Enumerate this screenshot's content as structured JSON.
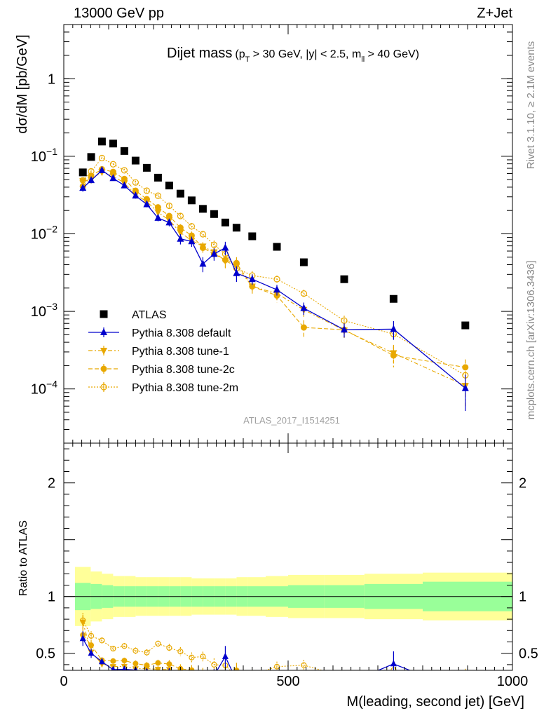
{
  "header": {
    "left": "13000 GeV pp",
    "right": "Z+Jet"
  },
  "side_labels": {
    "rivet": "Rivet 3.1.10, ≥ 2.1M events",
    "site": "mcplots.cern.ch [arXiv:1306.3436]"
  },
  "analysis_id": "ATLAS_2017_I1514251",
  "chart_data": {
    "type": "scatter",
    "title": {
      "main": "Dijet mass",
      "cuts_prefix": "(p",
      "cuts_sub1": "T",
      "cuts_mid": " > 30 GeV, |y| < 2.5, m",
      "cuts_sub2": "ll",
      "cuts_suffix": " > 40 GeV)"
    },
    "xlabel": "M(leading, second jet) [GeV]",
    "ylabel": "dσ/dM [pb/GeV]",
    "ratio_ylabel": "Ratio to ATLAS",
    "xlim": [
      0,
      1000
    ],
    "ylim": [
      2e-05,
      5
    ],
    "yscale": "log",
    "ratio_ylim": [
      0.35,
      2.35
    ],
    "x_ticks": [
      {
        "value": 0,
        "label": "0"
      },
      {
        "value": 500,
        "label": "500"
      },
      {
        "value": 1000,
        "label": "1000"
      }
    ],
    "y_ticks": [
      {
        "value": 1,
        "label": "1"
      },
      {
        "value": 0.1,
        "label": "10",
        "exp": "−1"
      },
      {
        "value": 0.01,
        "label": "10",
        "exp": "−2"
      },
      {
        "value": 0.001,
        "label": "10",
        "exp": "−3"
      },
      {
        "value": 0.0001,
        "label": "10",
        "exp": "−4"
      }
    ],
    "ratio_ticks": [
      {
        "value": 0.5,
        "label": "0.5"
      },
      {
        "value": 1,
        "label": "1"
      },
      {
        "value": 2,
        "label": "2"
      }
    ],
    "legend_position": "lower-left",
    "x": [
      42.5,
      61,
      85,
      110,
      135,
      160,
      185,
      210,
      235,
      260,
      285,
      310,
      335,
      360,
      385,
      420,
      475,
      535,
      625,
      735,
      895
    ],
    "bin_edges": [
      25,
      60,
      85,
      110,
      135,
      160,
      185,
      210,
      235,
      260,
      285,
      310,
      335,
      360,
      385,
      410,
      450,
      500,
      580,
      670,
      800,
      1000
    ],
    "band_inner": [
      0.12,
      0.11,
      0.1,
      0.09,
      0.09,
      0.09,
      0.09,
      0.09,
      0.09,
      0.09,
      0.09,
      0.09,
      0.09,
      0.09,
      0.09,
      0.09,
      0.09,
      0.1,
      0.1,
      0.11,
      0.13
    ],
    "band_outer": [
      0.26,
      0.22,
      0.2,
      0.18,
      0.18,
      0.17,
      0.17,
      0.17,
      0.17,
      0.17,
      0.16,
      0.16,
      0.16,
      0.16,
      0.17,
      0.17,
      0.18,
      0.19,
      0.19,
      0.2,
      0.21
    ],
    "series": [
      {
        "name": "ATLAS",
        "color": "#000000",
        "marker": "square",
        "values": [
          0.062,
          0.098,
          0.155,
          0.146,
          0.117,
          0.088,
          0.071,
          0.053,
          0.042,
          0.033,
          0.027,
          0.021,
          0.018,
          0.014,
          0.012,
          0.0093,
          0.0068,
          0.0043,
          0.0026,
          0.00145,
          0.00066
        ]
      },
      {
        "name": "Pythia 8.308 default",
        "color": "#0000cc",
        "marker": "triangle-up",
        "line": "solid",
        "values": [
          0.039,
          0.049,
          0.066,
          0.052,
          0.042,
          0.031,
          0.024,
          0.016,
          0.014,
          0.0086,
          0.008,
          0.0041,
          0.0055,
          0.0066,
          0.0031,
          0.0026,
          0.0019,
          0.0011,
          0.00058,
          0.00059,
          0.000102
        ],
        "errors": [
          0.004,
          0.004,
          0.004,
          0.003,
          0.003,
          0.0025,
          0.002,
          0.0015,
          0.0015,
          0.0013,
          0.0012,
          0.0009,
          0.001,
          0.0013,
          0.0007,
          0.0004,
          0.0003,
          0.0002,
          0.00012,
          0.00016,
          5e-05
        ]
      },
      {
        "name": "Pythia 8.308 tune-1",
        "color": "#e8a800",
        "marker": "triangle-down",
        "line": "dashdot",
        "values": [
          0.048,
          0.05,
          0.063,
          0.056,
          0.045,
          0.032,
          0.026,
          0.019,
          0.015,
          0.0104,
          0.0082,
          0.0069,
          0.0058,
          0.0045,
          0.0038,
          0.0021,
          0.0017,
          0.00105,
          0.00057,
          0.00029,
          0.00011
        ],
        "errors": [
          0.004,
          0.004,
          0.004,
          0.003,
          0.003,
          0.0025,
          0.002,
          0.0015,
          0.0015,
          0.0013,
          0.0012,
          0.0009,
          0.001,
          0.0009,
          0.0008,
          0.0004,
          0.0003,
          0.0002,
          0.00012,
          8e-05,
          5e-05
        ]
      },
      {
        "name": "Pythia 8.308 tune-2c",
        "color": "#e8a800",
        "marker": "circle",
        "line": "dashed",
        "values": [
          0.041,
          0.056,
          0.068,
          0.063,
          0.051,
          0.036,
          0.028,
          0.022,
          0.017,
          0.012,
          0.0095,
          0.0066,
          0.0055,
          0.0046,
          0.0042,
          0.0021,
          0.0016,
          0.00062,
          0.00058,
          0.00027,
          0.00019
        ],
        "errors": [
          0.004,
          0.004,
          0.004,
          0.003,
          0.003,
          0.0025,
          0.002,
          0.0015,
          0.0015,
          0.0013,
          0.0012,
          0.0009,
          0.001,
          0.0009,
          0.0008,
          0.0004,
          0.0003,
          0.00015,
          0.00012,
          8e-05,
          5e-05
        ]
      },
      {
        "name": "Pythia 8.308 tune-2m",
        "color": "#e8a800",
        "marker": "circle-open",
        "line": "dotted",
        "values": [
          0.049,
          0.064,
          0.095,
          0.079,
          0.066,
          0.046,
          0.036,
          0.031,
          0.023,
          0.017,
          0.0125,
          0.0099,
          0.0072,
          0.0055,
          0.0036,
          0.0029,
          0.0026,
          0.0017,
          0.00076,
          0.00051,
          0.00015
        ],
        "errors": [
          0.004,
          0.004,
          0.004,
          0.003,
          0.003,
          0.0025,
          0.002,
          0.0015,
          0.0015,
          0.0013,
          0.0012,
          0.0009,
          0.001,
          0.0009,
          0.0008,
          0.0004,
          0.0003,
          0.0002,
          0.00012,
          8e-05,
          5e-05
        ]
      }
    ]
  }
}
